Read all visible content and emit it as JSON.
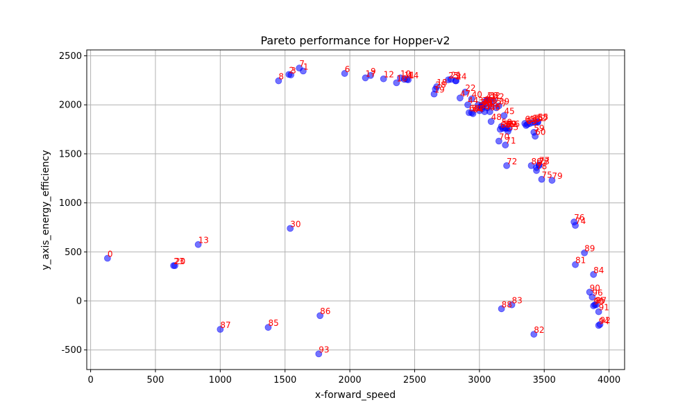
{
  "chart_data": {
    "type": "scatter",
    "title": "Pareto performance for Hopper-v2",
    "xlabel": "x-forward_speed",
    "ylabel": "y_axis_energy_efficiency",
    "xlim": [
      -30,
      4120
    ],
    "ylim": [
      -700,
      2560
    ],
    "xticks": [
      0,
      500,
      1000,
      1500,
      2000,
      2500,
      3000,
      3500,
      4000
    ],
    "yticks": [
      -500,
      0,
      500,
      1000,
      1500,
      2000,
      2500
    ],
    "grid": true,
    "marker_color": "#0000ff",
    "marker_alpha": 0.55,
    "label_color": "#ff0000",
    "points": [
      {
        "label": "0",
        "x": 130,
        "y": 435
      },
      {
        "label": "1",
        "x": 1640,
        "y": 2345
      },
      {
        "label": "2",
        "x": 1530,
        "y": 2310
      },
      {
        "label": "3",
        "x": 1545,
        "y": 2305
      },
      {
        "label": "4",
        "x": 2440,
        "y": 2260
      },
      {
        "label": "5",
        "x": 2815,
        "y": 2245
      },
      {
        "label": "6",
        "x": 1960,
        "y": 2320
      },
      {
        "label": "7",
        "x": 1610,
        "y": 2375
      },
      {
        "label": "8",
        "x": 1450,
        "y": 2245
      },
      {
        "label": "9",
        "x": 2160,
        "y": 2300
      },
      {
        "label": "10",
        "x": 2390,
        "y": 2275
      },
      {
        "label": "11",
        "x": 2420,
        "y": 2260
      },
      {
        "label": "12",
        "x": 2260,
        "y": 2265
      },
      {
        "label": "13",
        "x": 830,
        "y": 575
      },
      {
        "label": "14",
        "x": 2450,
        "y": 2255
      },
      {
        "label": "15",
        "x": 3410,
        "y": 1820
      },
      {
        "label": "16",
        "x": 2360,
        "y": 2225
      },
      {
        "label": "17",
        "x": 2120,
        "y": 2275
      },
      {
        "label": "18",
        "x": 2670,
        "y": 2185
      },
      {
        "label": "19",
        "x": 2650,
        "y": 2110
      },
      {
        "label": "20",
        "x": 650,
        "y": 360
      },
      {
        "label": "21",
        "x": 2780,
        "y": 2260
      },
      {
        "label": "22",
        "x": 2890,
        "y": 2130
      },
      {
        "label": "23",
        "x": 640,
        "y": 360
      },
      {
        "label": "24",
        "x": 2820,
        "y": 2245
      },
      {
        "label": "25",
        "x": 2760,
        "y": 2255
      },
      {
        "label": "26",
        "x": 3060,
        "y": 2050
      },
      {
        "label": "27",
        "x": 3130,
        "y": 1970
      },
      {
        "label": "28",
        "x": 2660,
        "y": 2160
      },
      {
        "label": "29",
        "x": 3020,
        "y": 1960
      },
      {
        "label": "30",
        "x": 1540,
        "y": 740
      },
      {
        "label": "31",
        "x": 2990,
        "y": 2000
      },
      {
        "label": "32",
        "x": 3080,
        "y": 2050
      },
      {
        "label": "33",
        "x": 3000,
        "y": 1940
      },
      {
        "label": "34",
        "x": 3040,
        "y": 2010
      },
      {
        "label": "35",
        "x": 3090,
        "y": 1990
      },
      {
        "label": "36",
        "x": 3010,
        "y": 1980
      },
      {
        "label": "37",
        "x": 3020,
        "y": 2000
      },
      {
        "label": "38",
        "x": 3060,
        "y": 1970
      },
      {
        "label": "39",
        "x": 3150,
        "y": 1990
      },
      {
        "label": "40",
        "x": 2940,
        "y": 2060
      },
      {
        "label": "41",
        "x": 3050,
        "y": 2040
      },
      {
        "label": "42",
        "x": 3110,
        "y": 2040
      },
      {
        "label": "43",
        "x": 3040,
        "y": 1930
      },
      {
        "label": "44",
        "x": 2910,
        "y": 2000
      },
      {
        "label": "45",
        "x": 3190,
        "y": 1890
      },
      {
        "label": "46",
        "x": 3080,
        "y": 1930
      },
      {
        "label": "47",
        "x": 2850,
        "y": 2070
      },
      {
        "label": "48",
        "x": 3090,
        "y": 1830
      },
      {
        "label": "49",
        "x": 3020,
        "y": 1980
      },
      {
        "label": "50",
        "x": 3180,
        "y": 1760
      },
      {
        "label": "51",
        "x": 3370,
        "y": 1800
      },
      {
        "label": "52",
        "x": 3430,
        "y": 1820
      },
      {
        "label": "53",
        "x": 3220,
        "y": 1730
      },
      {
        "label": "54",
        "x": 2940,
        "y": 1920
      },
      {
        "label": "55",
        "x": 3450,
        "y": 1830
      },
      {
        "label": "56",
        "x": 3390,
        "y": 1810
      },
      {
        "label": "57",
        "x": 3450,
        "y": 1820
      },
      {
        "label": "58",
        "x": 3170,
        "y": 1780
      },
      {
        "label": "59",
        "x": 3420,
        "y": 1720
      },
      {
        "label": "60",
        "x": 3430,
        "y": 1680
      },
      {
        "label": "61",
        "x": 3350,
        "y": 1810
      },
      {
        "label": "62",
        "x": 3210,
        "y": 1760
      },
      {
        "label": "63",
        "x": 3360,
        "y": 1790
      },
      {
        "label": "64",
        "x": 2950,
        "y": 1910
      },
      {
        "label": "65",
        "x": 3160,
        "y": 1750
      },
      {
        "label": "66",
        "x": 3230,
        "y": 1760
      },
      {
        "label": "67",
        "x": 3440,
        "y": 1360
      },
      {
        "label": "68",
        "x": 2920,
        "y": 1920
      },
      {
        "label": "69",
        "x": 3200,
        "y": 1760
      },
      {
        "label": "70",
        "x": 3150,
        "y": 1630
      },
      {
        "label": "71",
        "x": 3200,
        "y": 1590
      },
      {
        "label": "72",
        "x": 3210,
        "y": 1380
      },
      {
        "label": "73",
        "x": 3460,
        "y": 1380
      },
      {
        "label": "74",
        "x": 3740,
        "y": 770
      },
      {
        "label": "75",
        "x": 3480,
        "y": 1240
      },
      {
        "label": "76",
        "x": 3730,
        "y": 805
      },
      {
        "label": "77",
        "x": 3460,
        "y": 1390
      },
      {
        "label": "78",
        "x": 3440,
        "y": 1330
      },
      {
        "label": "79",
        "x": 3560,
        "y": 1230
      },
      {
        "label": "80",
        "x": 3400,
        "y": 1380
      },
      {
        "label": "81",
        "x": 3740,
        "y": 370
      },
      {
        "label": "82",
        "x": 3420,
        "y": -340
      },
      {
        "label": "83",
        "x": 3250,
        "y": -40
      },
      {
        "label": "84",
        "x": 3880,
        "y": 270
      },
      {
        "label": "85",
        "x": 1370,
        "y": -270
      },
      {
        "label": "86",
        "x": 1770,
        "y": -150
      },
      {
        "label": "87",
        "x": 1000,
        "y": -290
      },
      {
        "label": "88",
        "x": 3170,
        "y": -80
      },
      {
        "label": "89",
        "x": 3810,
        "y": 490
      },
      {
        "label": "90",
        "x": 3850,
        "y": 90
      },
      {
        "label": "91",
        "x": 3920,
        "y": -110
      },
      {
        "label": "92",
        "x": 3930,
        "y": -240
      },
      {
        "label": "93",
        "x": 1760,
        "y": -540
      },
      {
        "label": "94",
        "x": 3920,
        "y": -250
      },
      {
        "label": "95",
        "x": 3890,
        "y": -40
      },
      {
        "label": "96",
        "x": 3870,
        "y": 40
      },
      {
        "label": "97",
        "x": 3900,
        "y": -40
      },
      {
        "label": "98",
        "x": 3880,
        "y": -50
      }
    ]
  }
}
